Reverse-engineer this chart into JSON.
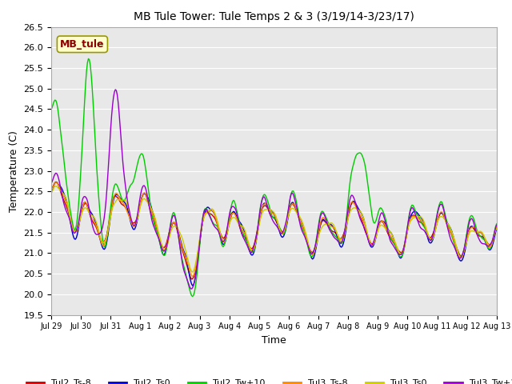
{
  "title": "MB Tule Tower: Tule Temps 2 & 3 (3/19/14-3/23/17)",
  "xlabel": "Time",
  "ylabel": "Temperature (C)",
  "ylim": [
    19.5,
    26.5
  ],
  "annotation": "MB_tule",
  "annotation_color": "#8B0000",
  "annotation_bg": "#FFFFCC",
  "plot_bg": "#E8E8E8",
  "grid_color": "#FFFFFF",
  "series": {
    "Tul2_Ts-8": {
      "color": "#CC0000",
      "lw": 1.0
    },
    "Tul2_Ts0": {
      "color": "#0000CC",
      "lw": 1.0
    },
    "Tul2_Tw+10": {
      "color": "#00CC00",
      "lw": 1.0
    },
    "Tul3_Ts-8": {
      "color": "#FF8800",
      "lw": 1.0
    },
    "Tul3_Ts0": {
      "color": "#CCCC00",
      "lw": 1.0
    },
    "Tul3_Tw+10": {
      "color": "#9900CC",
      "lw": 1.0
    }
  },
  "xtick_labels": [
    "Jul 29",
    "Jul 30",
    "Jul 31",
    "Aug 1",
    "Aug 2",
    "Aug 3",
    "Aug 4",
    "Aug 5",
    "Aug 6",
    "Aug 7",
    "Aug 8",
    "Aug 9",
    "Aug 10",
    "Aug 11",
    "Aug 12",
    "Aug 13"
  ],
  "ytick_values": [
    19.5,
    20.0,
    20.5,
    21.0,
    21.5,
    22.0,
    22.5,
    23.0,
    23.5,
    24.0,
    24.5,
    25.0,
    25.5,
    26.0,
    26.5
  ]
}
